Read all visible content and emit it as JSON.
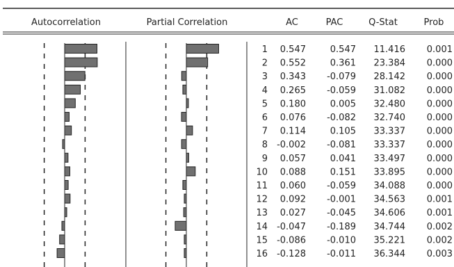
{
  "chart_data": {
    "type": "table",
    "columns": {
      "autocorrelation": "Autocorrelation",
      "partial_correlation": "Partial Correlation",
      "lag": "",
      "ac": "AC",
      "pac": "PAC",
      "qstat": "Q-Stat",
      "prob": "Prob"
    },
    "confidence_band": 0.42,
    "rows": [
      {
        "lag": "1",
        "ac": "0.547",
        "pac": "0.547",
        "q": "11.416",
        "prob": "0.001"
      },
      {
        "lag": "2",
        "ac": "0.552",
        "pac": "0.361",
        "q": "23.384",
        "prob": "0.000"
      },
      {
        "lag": "3",
        "ac": "0.343",
        "pac": "-0.079",
        "q": "28.142",
        "prob": "0.000"
      },
      {
        "lag": "4",
        "ac": "0.265",
        "pac": "-0.059",
        "q": "31.082",
        "prob": "0.000"
      },
      {
        "lag": "5",
        "ac": "0.180",
        "pac": "0.005",
        "q": "32.480",
        "prob": "0.000"
      },
      {
        "lag": "6",
        "ac": "0.076",
        "pac": "-0.082",
        "q": "32.740",
        "prob": "0.000"
      },
      {
        "lag": "7",
        "ac": "0.114",
        "pac": "0.105",
        "q": "33.337",
        "prob": "0.000"
      },
      {
        "lag": "8",
        "ac": "-0.002",
        "pac": "-0.081",
        "q": "33.337",
        "prob": "0.000"
      },
      {
        "lag": "9",
        "ac": "0.057",
        "pac": "0.041",
        "q": "33.497",
        "prob": "0.000"
      },
      {
        "lag": "10",
        "ac": "0.088",
        "pac": "0.151",
        "q": "33.895",
        "prob": "0.000"
      },
      {
        "lag": "11",
        "ac": "0.060",
        "pac": "-0.059",
        "q": "34.088",
        "prob": "0.000"
      },
      {
        "lag": "12",
        "ac": "0.092",
        "pac": "-0.001",
        "q": "34.563",
        "prob": "0.001"
      },
      {
        "lag": "13",
        "ac": "0.027",
        "pac": "-0.045",
        "q": "34.606",
        "prob": "0.001"
      },
      {
        "lag": "14",
        "ac": "-0.047",
        "pac": "-0.189",
        "q": "34.744",
        "prob": "0.002"
      },
      {
        "lag": "15",
        "ac": "-0.086",
        "pac": "-0.010",
        "q": "35.221",
        "prob": "0.002"
      },
      {
        "lag": "16",
        "ac": "-0.128",
        "pac": "-0.011",
        "q": "36.344",
        "prob": "0.003"
      }
    ],
    "bar_color": "#707070",
    "bar_outline": "#222222"
  }
}
